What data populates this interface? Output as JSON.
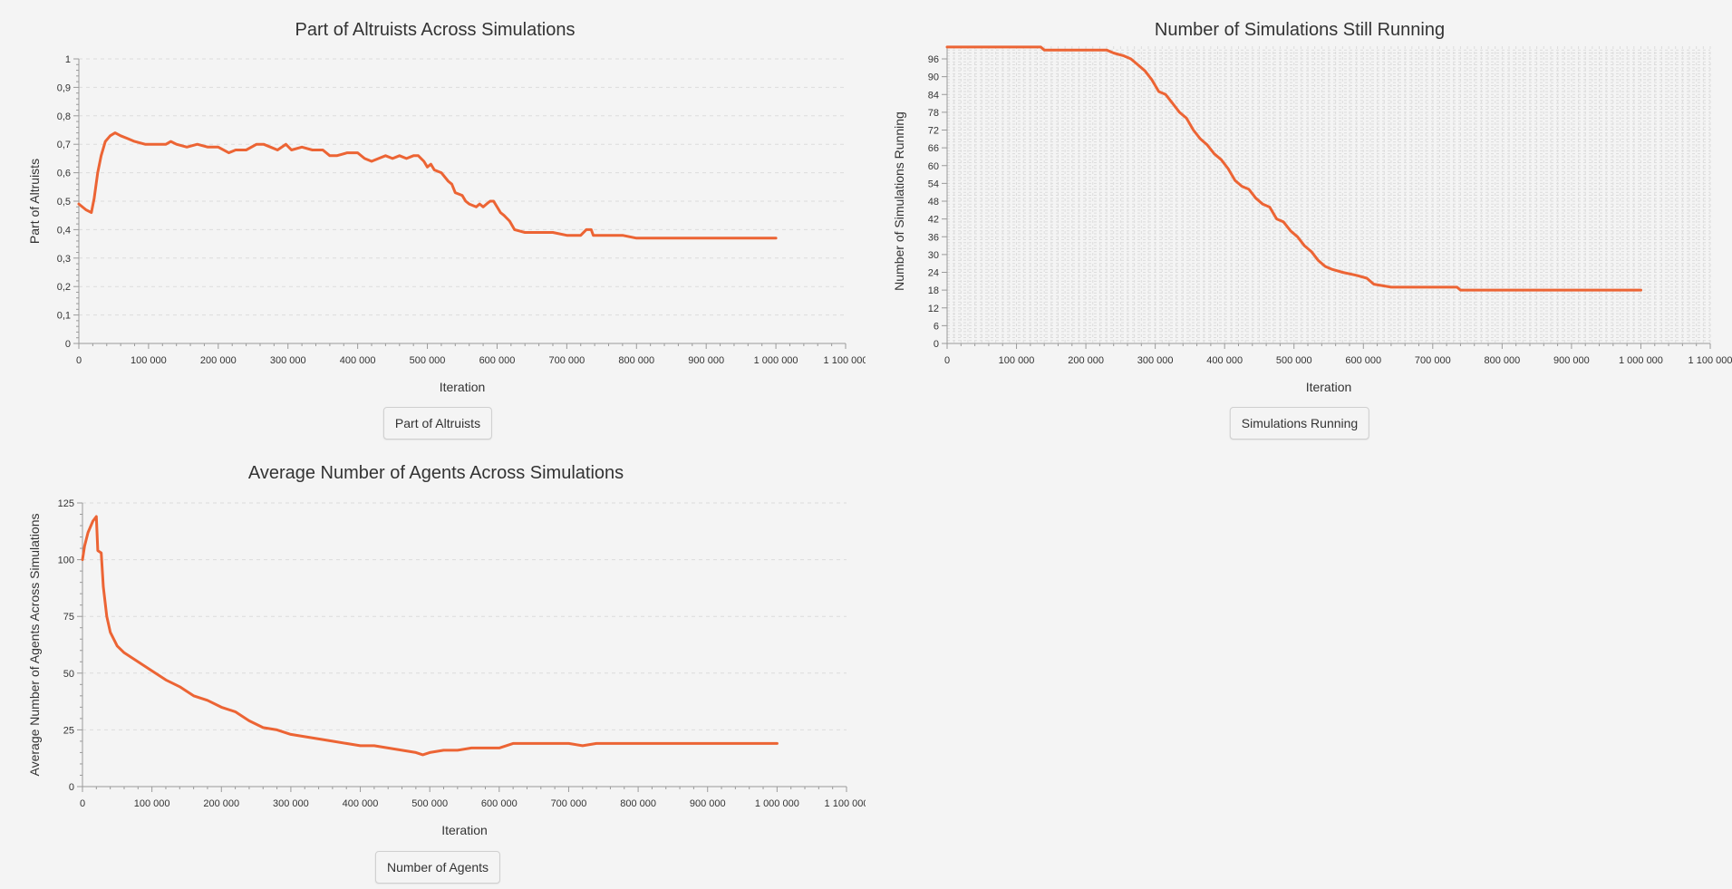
{
  "colors": {
    "series": "#ec6434",
    "grid": "#dcdcdc",
    "axis": "#9a9a9a",
    "background": "#f4f4f4"
  },
  "chart_data": [
    {
      "id": "altruists",
      "type": "line",
      "title": "Part of Altruists Across Simulations",
      "xlabel": "Iteration",
      "ylabel": "Part of Altruists",
      "xlim": [
        0,
        1100000
      ],
      "ylim": [
        0,
        1
      ],
      "x_ticks": [
        0,
        100000,
        200000,
        300000,
        400000,
        500000,
        600000,
        700000,
        800000,
        900000,
        1000000,
        1100000
      ],
      "x_tick_labels": [
        "0",
        "100 000",
        "200 000",
        "300 000",
        "400 000",
        "500 000",
        "600 000",
        "700 000",
        "800 000",
        "900 000",
        "1 000 000",
        "1 100 000"
      ],
      "y_ticks": [
        0,
        0.1,
        0.2,
        0.3,
        0.4,
        0.5,
        0.6,
        0.7,
        0.8,
        0.9,
        1
      ],
      "y_tick_labels": [
        "0",
        "0,1",
        "0,2",
        "0,3",
        "0,4",
        "0,5",
        "0,6",
        "0,7",
        "0,8",
        "0,9",
        "1"
      ],
      "legend": "Part of Altruists",
      "series": [
        {
          "name": "Part of Altruists",
          "x": [
            0,
            10000,
            18000,
            22000,
            27000,
            32000,
            38000,
            45000,
            52000,
            60000,
            70000,
            80000,
            95000,
            110000,
            125000,
            132000,
            140000,
            155000,
            170000,
            185000,
            200000,
            215000,
            225000,
            240000,
            255000,
            265000,
            275000,
            285000,
            297000,
            305000,
            320000,
            335000,
            350000,
            360000,
            370000,
            385000,
            400000,
            410000,
            420000,
            430000,
            440000,
            450000,
            460000,
            470000,
            480000,
            487000,
            495000,
            500000,
            505000,
            510000,
            520000,
            530000,
            535000,
            540000,
            550000,
            555000,
            560000,
            570000,
            575000,
            580000,
            585000,
            590000,
            595000,
            605000,
            610000,
            618000,
            625000,
            640000,
            660000,
            680000,
            700000,
            710000,
            720000,
            728000,
            735000,
            738000,
            745000,
            760000,
            780000,
            800000,
            820000,
            840000,
            860000,
            880000,
            900000,
            920000,
            940000,
            960000,
            980000,
            1000000
          ],
          "y": [
            0.49,
            0.47,
            0.46,
            0.51,
            0.6,
            0.66,
            0.71,
            0.73,
            0.74,
            0.73,
            0.72,
            0.71,
            0.7,
            0.7,
            0.7,
            0.71,
            0.7,
            0.69,
            0.7,
            0.69,
            0.69,
            0.67,
            0.68,
            0.68,
            0.7,
            0.7,
            0.69,
            0.68,
            0.7,
            0.68,
            0.69,
            0.68,
            0.68,
            0.66,
            0.66,
            0.67,
            0.67,
            0.65,
            0.64,
            0.65,
            0.66,
            0.65,
            0.66,
            0.65,
            0.66,
            0.66,
            0.64,
            0.62,
            0.63,
            0.61,
            0.6,
            0.57,
            0.56,
            0.53,
            0.52,
            0.5,
            0.49,
            0.48,
            0.49,
            0.48,
            0.49,
            0.5,
            0.5,
            0.46,
            0.45,
            0.43,
            0.4,
            0.39,
            0.39,
            0.39,
            0.38,
            0.38,
            0.38,
            0.4,
            0.4,
            0.38,
            0.38,
            0.38,
            0.38,
            0.37,
            0.37,
            0.37,
            0.37,
            0.37,
            0.37,
            0.37,
            0.37,
            0.37,
            0.37,
            0.37
          ]
        }
      ]
    },
    {
      "id": "running",
      "type": "line",
      "title": "Number of Simulations Still Running",
      "xlabel": "Iteration",
      "ylabel": "Number of Simulations Running",
      "xlim": [
        0,
        1100000
      ],
      "ylim": [
        0,
        96
      ],
      "grid_step": 1,
      "x_ticks": [
        0,
        100000,
        200000,
        300000,
        400000,
        500000,
        600000,
        700000,
        800000,
        900000,
        1000000,
        1100000
      ],
      "x_tick_labels": [
        "0",
        "100 000",
        "200 000",
        "300 000",
        "400 000",
        "500 000",
        "600 000",
        "700 000",
        "800 000",
        "900 000",
        "1 000 000",
        "1 100 000"
      ],
      "y_ticks": [
        0,
        6,
        12,
        18,
        24,
        30,
        36,
        42,
        48,
        54,
        60,
        66,
        72,
        78,
        84,
        90,
        96
      ],
      "y_tick_labels": [
        "0",
        "6",
        "12",
        "18",
        "24",
        "30",
        "36",
        "42",
        "48",
        "54",
        "60",
        "66",
        "72",
        "78",
        "84",
        "90",
        "96"
      ],
      "legend": "Simulations Running",
      "series": [
        {
          "name": "Simulations Running",
          "x": [
            0,
            135000,
            140000,
            230000,
            240000,
            255000,
            265000,
            275000,
            285000,
            295000,
            305000,
            315000,
            325000,
            335000,
            345000,
            355000,
            365000,
            375000,
            385000,
            395000,
            405000,
            415000,
            425000,
            435000,
            445000,
            455000,
            465000,
            475000,
            485000,
            495000,
            505000,
            515000,
            525000,
            535000,
            545000,
            555000,
            570000,
            590000,
            605000,
            615000,
            640000,
            700000,
            735000,
            740000,
            800000,
            900000,
            1000000
          ],
          "y": [
            100,
            100,
            99,
            99,
            98,
            97,
            96,
            94,
            92,
            89,
            85,
            84,
            81,
            78,
            76,
            72,
            69,
            67,
            64,
            62,
            59,
            55,
            53,
            52,
            49,
            47,
            46,
            42,
            41,
            38,
            36,
            33,
            31,
            28,
            26,
            25,
            24,
            23,
            22,
            20,
            19,
            19,
            19,
            18,
            18,
            18,
            18
          ]
        }
      ]
    },
    {
      "id": "agents",
      "type": "line",
      "title": "Average Number of Agents Across Simulations",
      "xlabel": "Iteration",
      "ylabel": "Average Number of Agents Across Simulations",
      "xlim": [
        0,
        1100000
      ],
      "ylim": [
        0,
        125
      ],
      "x_ticks": [
        0,
        100000,
        200000,
        300000,
        400000,
        500000,
        600000,
        700000,
        800000,
        900000,
        1000000,
        1100000
      ],
      "x_tick_labels": [
        "0",
        "100 000",
        "200 000",
        "300 000",
        "400 000",
        "500 000",
        "600 000",
        "700 000",
        "800 000",
        "900 000",
        "1 000 000",
        "1 100 000"
      ],
      "y_ticks": [
        0,
        25,
        50,
        75,
        100,
        125
      ],
      "y_tick_labels": [
        "0",
        "25",
        "50",
        "75",
        "100",
        "125"
      ],
      "legend": "Number of Agents",
      "series": [
        {
          "name": "Number of Agents",
          "x": [
            0,
            3000,
            8000,
            15000,
            20000,
            22000,
            27000,
            30000,
            35000,
            40000,
            50000,
            60000,
            80000,
            100000,
            120000,
            140000,
            160000,
            180000,
            200000,
            220000,
            240000,
            260000,
            280000,
            300000,
            320000,
            340000,
            360000,
            380000,
            400000,
            420000,
            440000,
            460000,
            480000,
            490000,
            500000,
            520000,
            540000,
            560000,
            580000,
            600000,
            620000,
            640000,
            660000,
            680000,
            700000,
            720000,
            740000,
            760000,
            800000,
            850000,
            900000,
            950000,
            1000000
          ],
          "y": [
            100,
            106,
            112,
            117,
            119,
            104,
            103,
            88,
            75,
            68,
            62,
            59,
            55,
            51,
            47,
            44,
            40,
            38,
            35,
            33,
            29,
            26,
            25,
            23,
            22,
            21,
            20,
            19,
            18,
            18,
            17,
            16,
            15,
            14,
            15,
            16,
            16,
            17,
            17,
            17,
            19,
            19,
            19,
            19,
            19,
            18,
            19,
            19,
            19,
            19,
            19,
            19,
            19
          ]
        }
      ]
    }
  ]
}
